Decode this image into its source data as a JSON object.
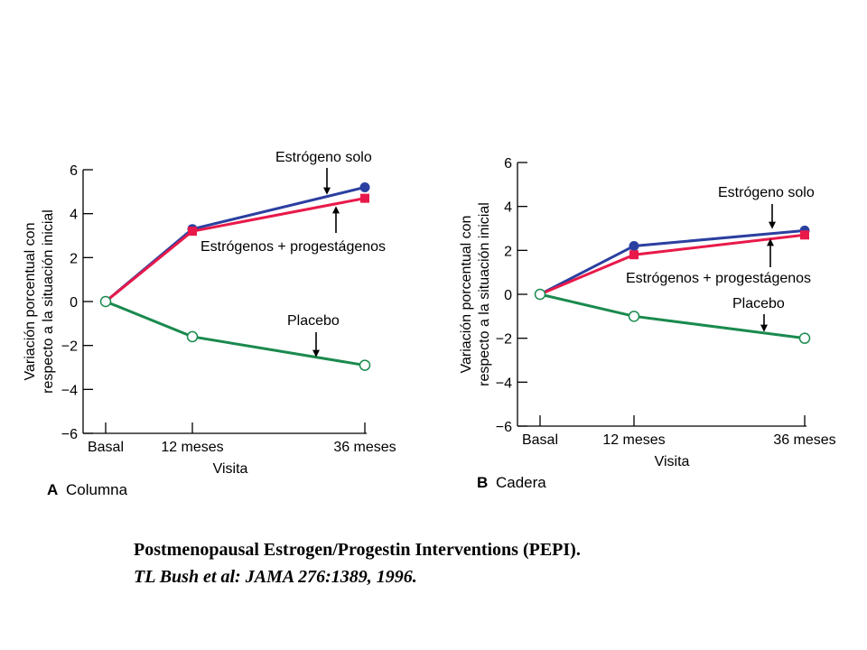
{
  "chart_data": [
    {
      "type": "line",
      "panel_letter": "A",
      "panel_title": "Columna",
      "xlabel": "Visita",
      "ylabel": [
        "Variación porcentual con",
        "respecto a la situación inicial"
      ],
      "categories": [
        "Basal",
        "12 meses",
        "36 meses"
      ],
      "ylim": [
        -6,
        6
      ],
      "yticks": [
        "6",
        "4",
        "2",
        "0",
        "−2",
        "−4",
        "−6"
      ],
      "grid": false,
      "series": [
        {
          "name": "Estrógeno solo",
          "values": [
            0,
            3.3,
            5.2
          ],
          "color": "#2b3fa0",
          "marker": "circle-filled"
        },
        {
          "name": "Estrógenos + progestágenos",
          "values": [
            0,
            3.2,
            4.7
          ],
          "color": "#e8194a",
          "marker": "square-filled"
        },
        {
          "name": "Placebo",
          "values": [
            0,
            -1.6,
            -2.9
          ],
          "color": "#1a8a4e",
          "marker": "circle-open"
        }
      ],
      "annotations": {
        "estrogen": "Estrógeno solo",
        "combo": "Estrógenos + progestágenos",
        "placebo": "Placebo"
      }
    },
    {
      "type": "line",
      "panel_letter": "B",
      "panel_title": "Cadera",
      "xlabel": "Visita",
      "ylabel": [
        "Variación porcentual con",
        "respecto a la situación inicial"
      ],
      "categories": [
        "Basal",
        "12 meses",
        "36 meses"
      ],
      "ylim": [
        -6,
        6
      ],
      "yticks": [
        "6",
        "4",
        "2",
        "0",
        "−2",
        "−4",
        "−6"
      ],
      "grid": false,
      "series": [
        {
          "name": "Estrógeno solo",
          "values": [
            0,
            2.2,
            2.9
          ],
          "color": "#2b3fa0",
          "marker": "circle-filled"
        },
        {
          "name": "Estrógenos + progestágenos",
          "values": [
            0,
            1.8,
            2.7
          ],
          "color": "#e8194a",
          "marker": "square-filled"
        },
        {
          "name": "Placebo",
          "values": [
            0,
            -1.0,
            -2.0
          ],
          "color": "#1a8a4e",
          "marker": "circle-open"
        }
      ],
      "annotations": {
        "estrogen": "Estrógeno solo",
        "combo": "Estrógenos + progestágenos",
        "placebo": "Placebo"
      }
    }
  ],
  "caption": {
    "line1": "Postmenopausal Estrogen/Progestin Interventions (PEPI).",
    "line2": "TL Bush et al: JAMA 276:1389, 1996."
  }
}
